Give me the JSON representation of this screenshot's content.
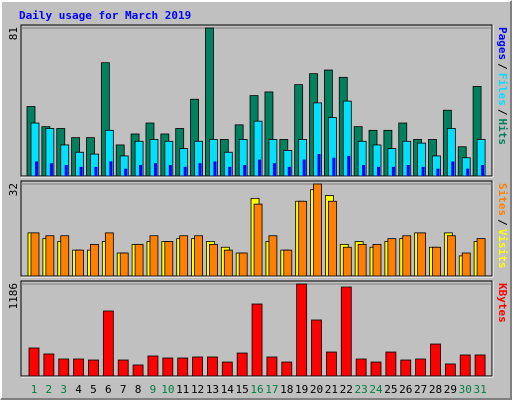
{
  "chart_data": [
    {
      "type": "bar",
      "title": "Daily usage for March 2019",
      "ylim": [
        0,
        81
      ],
      "yticks": [
        81
      ],
      "legend_separator": "/",
      "series": [
        {
          "name": "Hits",
          "color": "#00805c",
          "values": [
            38,
            27,
            26,
            21,
            21,
            62,
            17,
            23,
            29,
            23,
            26,
            42,
            81,
            20,
            28,
            44,
            46,
            20,
            50,
            56,
            58,
            54,
            27,
            25,
            25,
            29,
            20,
            20,
            36,
            16,
            49
          ]
        },
        {
          "name": "Files",
          "color": "#00e0ff",
          "values": [
            29,
            26,
            17,
            13,
            12,
            25,
            11,
            19,
            20,
            19,
            15,
            19,
            20,
            13,
            20,
            30,
            20,
            14,
            20,
            40,
            32,
            41,
            19,
            17,
            15,
            19,
            18,
            11,
            26,
            10,
            20
          ]
        },
        {
          "name": "Pages",
          "color": "#0000ff",
          "values": [
            8,
            7,
            6,
            5,
            5,
            8,
            4,
            6,
            7,
            6,
            5,
            7,
            8,
            5,
            6,
            9,
            7,
            5,
            9,
            12,
            10,
            11,
            6,
            5,
            5,
            6,
            5,
            4,
            8,
            4,
            6
          ]
        }
      ]
    },
    {
      "type": "bar",
      "ylim": [
        0,
        32
      ],
      "yticks": [
        32
      ],
      "legend_separator": "/",
      "series": [
        {
          "name": "Visits",
          "color": "#ffff00",
          "values": [
            15,
            13,
            12,
            9,
            9,
            12,
            8,
            11,
            12,
            12,
            13,
            13,
            12,
            10,
            8,
            27,
            12,
            9,
            26,
            30,
            28,
            11,
            12,
            10,
            12,
            13,
            15,
            10,
            15,
            7,
            12
          ]
        },
        {
          "name": "Sites",
          "color": "#ff8000",
          "values": [
            15,
            14,
            14,
            9,
            11,
            15,
            8,
            11,
            14,
            12,
            14,
            14,
            11,
            9,
            8,
            25,
            14,
            9,
            26,
            32,
            26,
            10,
            11,
            11,
            13,
            14,
            15,
            10,
            14,
            8,
            13
          ]
        }
      ]
    },
    {
      "type": "bar",
      "ylim": [
        0,
        1186
      ],
      "yticks": [
        1186
      ],
      "series": [
        {
          "name": "KBytes",
          "color": "#ff0000",
          "values": [
            361,
            284,
            219,
            219,
            206,
            838,
            206,
            142,
            258,
            232,
            232,
            245,
            245,
            180,
            296,
            928,
            245,
            180,
            1186,
            722,
            309,
            1147,
            219,
            180,
            309,
            206,
            219,
            412,
            155,
            271,
            271
          ]
        }
      ],
      "categories": [
        "1",
        "2",
        "3",
        "4",
        "5",
        "6",
        "7",
        "8",
        "9",
        "10",
        "11",
        "12",
        "13",
        "14",
        "15",
        "16",
        "17",
        "18",
        "19",
        "20",
        "21",
        "22",
        "23",
        "24",
        "25",
        "26",
        "27",
        "28",
        "29",
        "30",
        "31"
      ],
      "category_colors": [
        "#008040",
        "#008040",
        "#008040",
        "#000000",
        "#000000",
        "#000000",
        "#000000",
        "#000000",
        "#008040",
        "#008040",
        "#000000",
        "#000000",
        "#000000",
        "#000000",
        "#000000",
        "#008040",
        "#008040",
        "#000000",
        "#000000",
        "#000000",
        "#000000",
        "#000000",
        "#008040",
        "#008040",
        "#000000",
        "#000000",
        "#000000",
        "#000000",
        "#000000",
        "#008040",
        "#008040"
      ]
    }
  ]
}
